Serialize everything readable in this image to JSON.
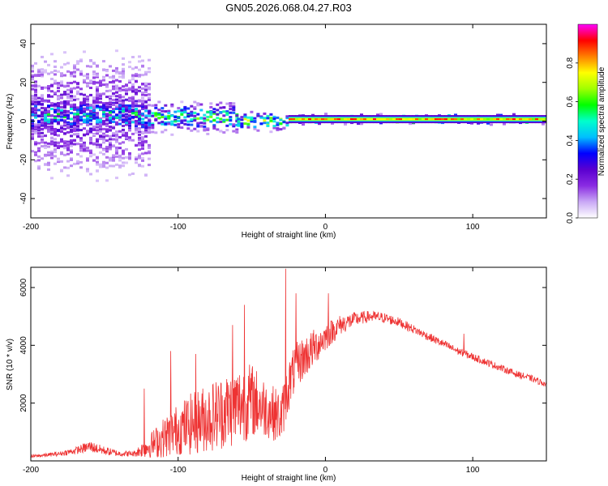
{
  "figure": {
    "title": "GN05.2026.068.04.27.R03"
  },
  "chart_data": [
    {
      "type": "heatmap",
      "name": "spectrogram",
      "title": "GN05.2026.068.04.27.R03",
      "xlabel": "Height of straight line (km)",
      "ylabel": "Frequency (Hz)",
      "xlim": [
        -200,
        150
      ],
      "ylim": [
        -50,
        50
      ],
      "xticks": [
        -200,
        -100,
        0,
        100
      ],
      "yticks": [
        -40,
        -20,
        0,
        20,
        40
      ],
      "colorbar": {
        "label": "Normalized spectral amplitude",
        "range": [
          0,
          1
        ],
        "ticks": [
          0.0,
          0.2,
          0.4,
          0.6,
          0.8
        ],
        "colormap": [
          "#ffffff",
          "#c9a8f5",
          "#8a2be2",
          "#5a00d0",
          "#0000ff",
          "#00bfff",
          "#00ffcc",
          "#00ff00",
          "#a0ff00",
          "#ffff00",
          "#ff8000",
          "#ff0000",
          "#ff00ff"
        ]
      },
      "regions": [
        {
          "x": [
            -200,
            -120
          ],
          "freq_center": 3,
          "spread": 45,
          "amplitude": 0.2
        },
        {
          "x": [
            -200,
            -125
          ],
          "freq_center": 3,
          "spread": 12,
          "amplitude": 0.4
        },
        {
          "x": [
            -125,
            -60
          ],
          "freq_center": 2,
          "spread": 10,
          "amplitude": 0.45
        },
        {
          "x": [
            -60,
            -25
          ],
          "freq_center": 0,
          "spread": 6,
          "amplitude": 0.55
        },
        {
          "x": [
            -25,
            150
          ],
          "freq_center": 1,
          "spread": 3,
          "amplitude": 0.9
        }
      ]
    },
    {
      "type": "line",
      "name": "snr",
      "xlabel": "Height of straight line (km)",
      "ylabel": "SNR (10 * v/v)",
      "xlim": [
        -200,
        150
      ],
      "ylim": [
        0,
        6700
      ],
      "xticks": [
        -200,
        -100,
        0,
        100
      ],
      "yticks": [
        2000,
        4000,
        6000
      ],
      "color": "#ee3333",
      "x": [
        -200,
        -190,
        -180,
        -170,
        -160,
        -150,
        -140,
        -130,
        -120,
        -110,
        -100,
        -90,
        -80,
        -70,
        -60,
        -50,
        -40,
        -30,
        -25,
        -20,
        -10,
        0,
        10,
        20,
        30,
        40,
        50,
        60,
        70,
        80,
        90,
        100,
        110,
        120,
        130,
        140,
        150
      ],
      "values": [
        150,
        200,
        250,
        350,
        500,
        350,
        250,
        250,
        500,
        800,
        1100,
        1300,
        1500,
        1700,
        1900,
        2100,
        1800,
        1500,
        2600,
        3300,
        3800,
        4300,
        4700,
        4900,
        5000,
        4950,
        4800,
        4550,
        4300,
        4050,
        3800,
        3600,
        3400,
        3200,
        3000,
        2850,
        2650
      ],
      "noise": [
        60,
        60,
        80,
        120,
        200,
        150,
        100,
        100,
        400,
        700,
        900,
        1100,
        1200,
        1300,
        1400,
        1300,
        1000,
        900,
        900,
        800,
        700,
        500,
        350,
        250,
        200,
        180,
        160,
        150,
        140,
        140,
        130,
        130,
        120,
        120,
        120,
        110,
        110
      ],
      "spikes": [
        {
          "x": -123,
          "value": 2500
        },
        {
          "x": -105,
          "value": 3800
        },
        {
          "x": -88,
          "value": 3700
        },
        {
          "x": -63,
          "value": 4700
        },
        {
          "x": -55,
          "value": 5400
        },
        {
          "x": -27,
          "value": 6650
        },
        {
          "x": -20,
          "value": 5800
        },
        {
          "x": 2,
          "value": 5800
        },
        {
          "x": 94,
          "value": 4400
        }
      ]
    }
  ]
}
